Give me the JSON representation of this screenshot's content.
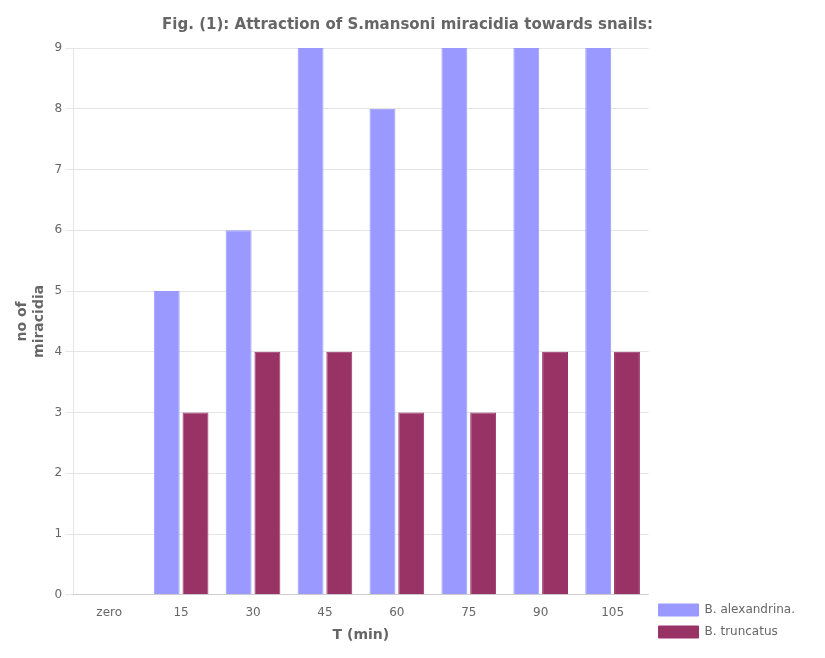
{
  "chart_data": {
    "type": "bar",
    "title": "Fig. (1): Attraction of S.mansoni miracidia towards snails:",
    "categories": [
      "zero",
      "15",
      "30",
      "45",
      "60",
      "75",
      "90",
      "105"
    ],
    "series": [
      {
        "name": "B. alexandrina.",
        "color": "#9999ff",
        "values": [
          0,
          5,
          6,
          9,
          8,
          9,
          9,
          9
        ]
      },
      {
        "name": "B. truncatus",
        "color": "#993366",
        "values": [
          0,
          3,
          4,
          4,
          3,
          3,
          4,
          4
        ]
      }
    ],
    "xlabel": "T (min)",
    "ylabel": [
      "no of",
      "miracidia"
    ],
    "ylim": [
      0,
      9
    ],
    "yticks": [
      0,
      1,
      2,
      3,
      4,
      5,
      6,
      7,
      8,
      9
    ],
    "grid": true,
    "legend": "right"
  }
}
